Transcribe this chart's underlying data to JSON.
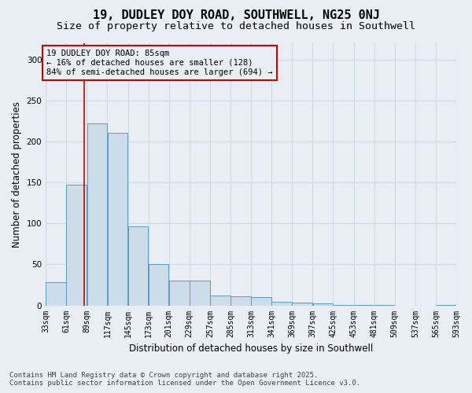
{
  "title": "19, DUDLEY DOY ROAD, SOUTHWELL, NG25 0NJ",
  "subtitle": "Size of property relative to detached houses in Southwell",
  "xlabel": "Distribution of detached houses by size in Southwell",
  "ylabel": "Number of detached properties",
  "footer_line1": "Contains HM Land Registry data © Crown copyright and database right 2025.",
  "footer_line2": "Contains public sector information licensed under the Open Government Licence v3.0.",
  "annotation_title": "19 DUDLEY DOY ROAD: 85sqm",
  "annotation_line1": "← 16% of detached houses are smaller (128)",
  "annotation_line2": "84% of semi-detached houses are larger (694) →",
  "property_size": 85,
  "bar_color": "#ccdce8",
  "bar_edge_color": "#5b9cc0",
  "red_line_color": "#cc0000",
  "annotation_box_edge_color": "#cc0000",
  "background_color": "#e8eef4",
  "plot_bg_color": "#e8eef4",
  "bin_starts": [
    33,
    61,
    89,
    117,
    145,
    173,
    201,
    229,
    257,
    285,
    313,
    341,
    369,
    397,
    425,
    453,
    481,
    509,
    537,
    565
  ],
  "bin_width": 28,
  "counts": [
    28,
    147,
    222,
    211,
    96,
    50,
    30,
    30,
    12,
    11,
    10,
    4,
    3,
    2,
    1,
    1,
    1,
    0,
    0,
    1
  ],
  "tick_labels": [
    "33sqm",
    "61sqm",
    "89sqm",
    "117sqm",
    "145sqm",
    "173sqm",
    "201sqm",
    "229sqm",
    "257sqm",
    "285sqm",
    "313sqm",
    "341sqm",
    "369sqm",
    "397sqm",
    "425sqm",
    "453sqm",
    "481sqm",
    "509sqm",
    "537sqm",
    "565sqm",
    "593sqm"
  ],
  "ylim": [
    0,
    320
  ],
  "yticks": [
    0,
    50,
    100,
    150,
    200,
    250,
    300
  ],
  "title_fontsize": 11,
  "subtitle_fontsize": 9.5,
  "axis_label_fontsize": 8.5,
  "tick_fontsize": 7,
  "annotation_fontsize": 7.5,
  "footer_fontsize": 6.5,
  "grid_color": "#d0dae4"
}
